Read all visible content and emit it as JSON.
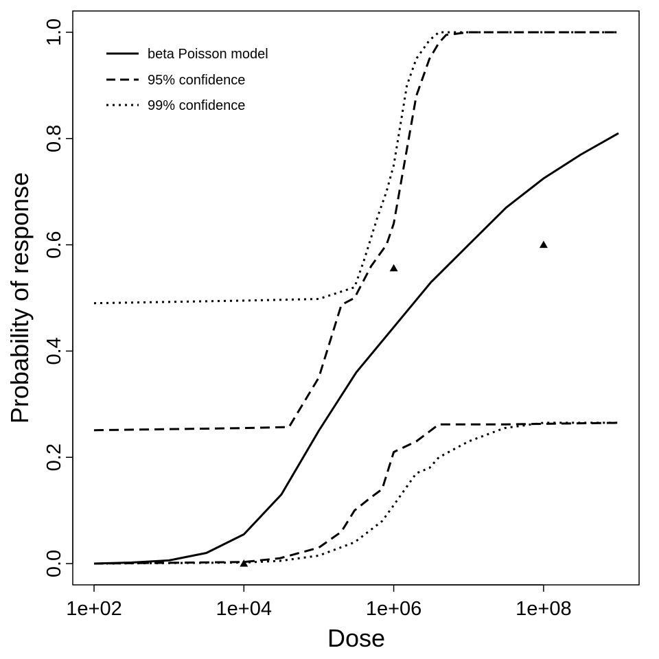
{
  "chart_data": {
    "type": "line",
    "xlabel": "Dose",
    "ylabel": "Probability of response",
    "x_scale": "log10",
    "xlim": [
      100,
      1000000000
    ],
    "ylim": [
      0,
      1
    ],
    "x_ticks": [
      {
        "value": 100,
        "label": "1e+02"
      },
      {
        "value": 10000,
        "label": "1e+04"
      },
      {
        "value": 1000000,
        "label": "1e+06"
      },
      {
        "value": 100000000,
        "label": "1e+08"
      }
    ],
    "y_ticks": [
      {
        "value": 0.0,
        "label": "0.0"
      },
      {
        "value": 0.2,
        "label": "0.2"
      },
      {
        "value": 0.4,
        "label": "0.4"
      },
      {
        "value": 0.6,
        "label": "0.6"
      },
      {
        "value": 0.8,
        "label": "0.8"
      },
      {
        "value": 1.0,
        "label": "1.0"
      }
    ],
    "legend": {
      "position": "top-left",
      "entries": [
        {
          "label": "beta Poisson model",
          "style": "solid"
        },
        {
          "label": "95% confidence",
          "style": "dashed"
        },
        {
          "label": "99% confidence",
          "style": "dotted"
        }
      ]
    },
    "series": [
      {
        "name": "beta Poisson model",
        "style": "solid",
        "x": [
          100,
          316,
          1000,
          3162,
          10000,
          31623,
          100000,
          316228,
          1000000,
          3162278,
          10000000,
          31622777,
          100000000,
          316227766,
          1000000000
        ],
        "y": [
          0.0,
          0.002,
          0.006,
          0.02,
          0.055,
          0.13,
          0.25,
          0.36,
          0.445,
          0.53,
          0.6,
          0.67,
          0.725,
          0.77,
          0.81
        ]
      },
      {
        "name": "95% confidence",
        "style": "dashed",
        "x": [
          100,
          10000,
          40000,
          100000,
          150000,
          200000,
          300000,
          500000,
          800000,
          1000000,
          2000000,
          3000000,
          4000000,
          5000000,
          10000000,
          1000000000
        ],
        "y": [
          0.251,
          0.255,
          0.257,
          0.35,
          0.43,
          0.487,
          0.5,
          0.56,
          0.6,
          0.64,
          0.88,
          0.95,
          0.98,
          0.995,
          1.0,
          1.0
        ]
      },
      {
        "name": "95% confidence",
        "style": "dashed",
        "x": [
          100,
          10000,
          30000,
          100000,
          200000,
          300000,
          500000,
          700000,
          1000000,
          2000000,
          4000000,
          10000000,
          30000000,
          1000000000
        ],
        "y": [
          0.0,
          0.003,
          0.01,
          0.03,
          0.06,
          0.1,
          0.125,
          0.14,
          0.21,
          0.23,
          0.262,
          0.262,
          0.262,
          0.265
        ]
      },
      {
        "name": "99% confidence",
        "style": "dotted",
        "x": [
          100,
          10000,
          100000,
          300000,
          400000,
          600000,
          800000,
          1000000,
          1500000,
          2000000,
          3000000,
          4000000,
          5000000,
          10000000,
          1000000000
        ],
        "y": [
          0.49,
          0.495,
          0.498,
          0.52,
          0.57,
          0.65,
          0.7,
          0.75,
          0.9,
          0.95,
          0.985,
          1.0,
          1.0,
          1.0,
          1.0
        ]
      },
      {
        "name": "99% confidence",
        "style": "dotted",
        "x": [
          100,
          10000,
          30000,
          100000,
          300000,
          700000,
          1000000,
          2000000,
          3000000,
          4000000,
          10000000,
          30000000,
          100000000,
          1000000000
        ],
        "y": [
          0.0,
          0.002,
          0.005,
          0.015,
          0.04,
          0.08,
          0.11,
          0.17,
          0.18,
          0.2,
          0.23,
          0.255,
          0.265,
          0.265
        ]
      }
    ],
    "observations": {
      "marker": "triangle",
      "x": [
        10000,
        1000000,
        100000000
      ],
      "y": [
        0.0,
        0.556,
        0.6
      ]
    }
  }
}
